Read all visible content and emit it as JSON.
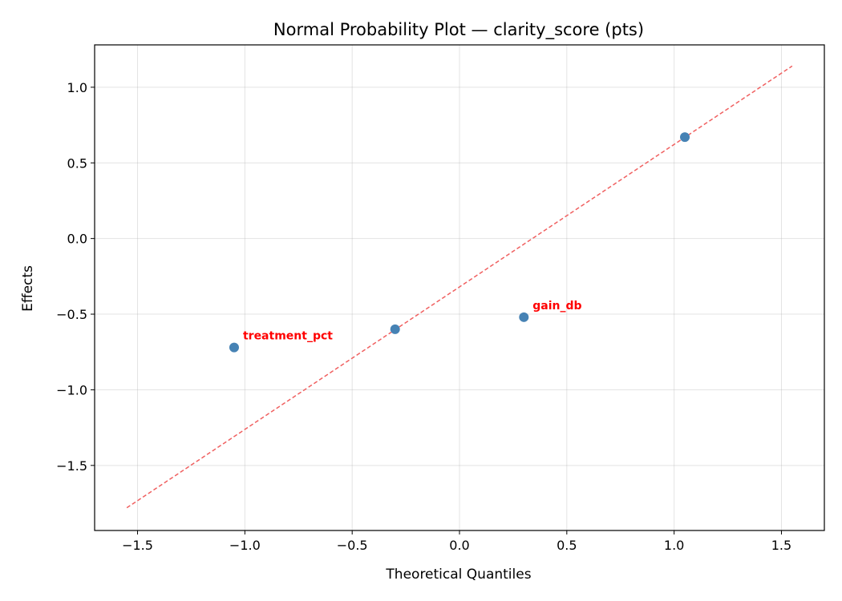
{
  "chart_data": {
    "type": "scatter",
    "title": "Normal Probability Plot — clarity_score (pts)",
    "xlabel": "Theoretical Quantiles",
    "ylabel": "Effects",
    "xlim": [
      -1.7,
      1.7
    ],
    "ylim": [
      -1.93,
      1.28
    ],
    "xticks": [
      -1.5,
      -1.0,
      -0.5,
      0.0,
      0.5,
      1.0,
      1.5
    ],
    "xtick_labels": [
      "−1.5",
      "−1.0",
      "−0.5",
      "0.0",
      "0.5",
      "1.0",
      "1.5"
    ],
    "yticks": [
      -1.5,
      -1.0,
      -0.5,
      0.0,
      0.5,
      1.0
    ],
    "ytick_labels": [
      "−1.5",
      "−1.0",
      "−0.5",
      "0.0",
      "0.5",
      "1.0"
    ],
    "grid": true,
    "points": [
      {
        "x": -1.05,
        "y": -0.72,
        "label": "treatment_pct"
      },
      {
        "x": -0.3,
        "y": -0.6,
        "label": ""
      },
      {
        "x": 0.3,
        "y": -0.52,
        "label": "gain_db"
      },
      {
        "x": 1.05,
        "y": 0.67,
        "label": ""
      }
    ],
    "reference_line": {
      "x": [
        -1.55,
        1.55
      ],
      "y": [
        -1.78,
        1.14
      ],
      "style": "dashed"
    },
    "colors": {
      "points": "#4682b4",
      "reference_line": "#f06060",
      "annotation": "#ff0000"
    }
  }
}
